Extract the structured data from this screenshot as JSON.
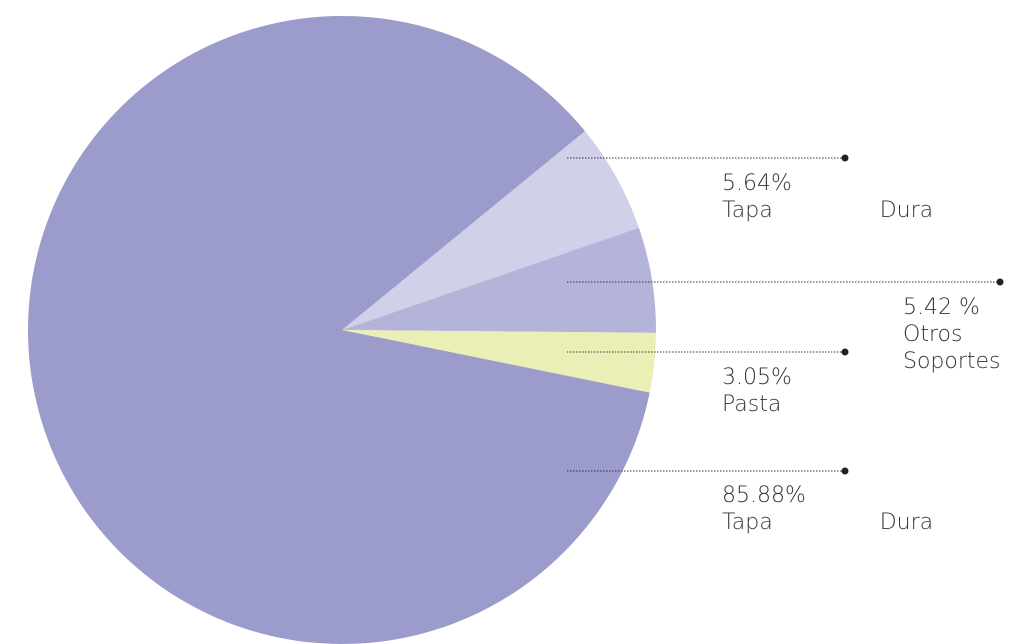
{
  "chart_data": {
    "type": "pie",
    "categories": [
      "Tapa Dura",
      "Otros Soportes",
      "Pasta",
      "Tapa Dura"
    ],
    "values": [
      5.64,
      5.42,
      3.05,
      85.88
    ],
    "value_labels": [
      "5.64%",
      "5.42 %",
      "3.05%",
      "85.88%"
    ],
    "colors": [
      "#d0d0e9",
      "#b4b4da",
      "#ecefb5",
      "#9b9bcc"
    ]
  }
}
